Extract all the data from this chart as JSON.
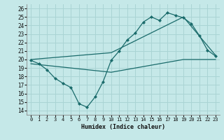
{
  "xlabel": "Humidex (Indice chaleur)",
  "xlim": [
    -0.5,
    23.5
  ],
  "ylim": [
    13.5,
    26.5
  ],
  "yticks": [
    14,
    15,
    16,
    17,
    18,
    19,
    20,
    21,
    22,
    23,
    24,
    25,
    26
  ],
  "xticks": [
    0,
    1,
    2,
    3,
    4,
    5,
    6,
    7,
    8,
    9,
    10,
    11,
    12,
    13,
    14,
    15,
    16,
    17,
    18,
    19,
    20,
    21,
    22,
    23
  ],
  "bg_color": "#c5e8e8",
  "grid_color": "#aad4d4",
  "line_color": "#1a6b6b",
  "line1_x": [
    0,
    1,
    2,
    3,
    4,
    5,
    6,
    7,
    8,
    9,
    10,
    11,
    12,
    13,
    14,
    15,
    16,
    17,
    18,
    19,
    20,
    21,
    22,
    23
  ],
  "line1_y": [
    19.9,
    19.5,
    18.8,
    17.8,
    17.2,
    16.7,
    14.8,
    14.4,
    15.6,
    17.4,
    19.9,
    21.0,
    22.3,
    23.1,
    24.4,
    25.0,
    24.6,
    25.5,
    25.2,
    24.9,
    24.2,
    22.8,
    21.1,
    20.4
  ],
  "line2_x": [
    0,
    10,
    19,
    23
  ],
  "line2_y": [
    20.0,
    20.8,
    25.0,
    20.5
  ],
  "line3_x": [
    0,
    10,
    19,
    23
  ],
  "line3_y": [
    19.5,
    18.5,
    20.0,
    20.0
  ]
}
